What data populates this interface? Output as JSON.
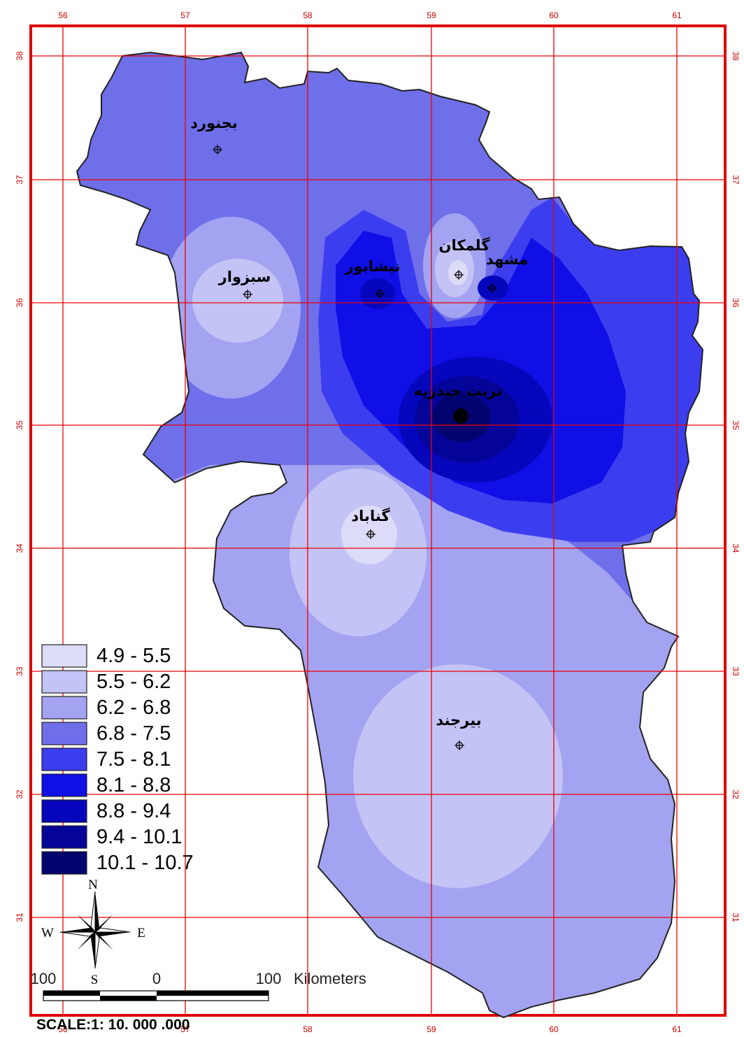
{
  "map": {
    "longitude_ticks": [
      "56",
      "57",
      "58",
      "59",
      "60",
      "61"
    ],
    "latitude_ticks": [
      "38",
      "37",
      "36",
      "35",
      "34",
      "33",
      "32",
      "31"
    ],
    "cities": [
      {
        "id": "bojnurd",
        "name": "بجنورد"
      },
      {
        "id": "sabzevar",
        "name": "سبزوار"
      },
      {
        "id": "neyshabur",
        "name": "نیشابور"
      },
      {
        "id": "golmakan",
        "name": "گلمکان"
      },
      {
        "id": "mashhad",
        "name": "مشهد"
      },
      {
        "id": "torbat",
        "name": "تربت حیدریه"
      },
      {
        "id": "gonabad",
        "name": "گناباد"
      },
      {
        "id": "birjand",
        "name": "بیرجند"
      }
    ]
  },
  "legend": {
    "classes": [
      {
        "label": "4.9 - 5.5",
        "color": "#dcdcf8"
      },
      {
        "label": "5.5 - 6.2",
        "color": "#c3c3f6"
      },
      {
        "label": "6.2 - 6.8",
        "color": "#a3a3f1"
      },
      {
        "label": "6.8 - 7.5",
        "color": "#6f6fea"
      },
      {
        "label": "7.5 - 8.1",
        "color": "#3d3df0"
      },
      {
        "label": "8.1 - 8.8",
        "color": "#0f0fe6"
      },
      {
        "label": "8.8 - 9.4",
        "color": "#0606bd"
      },
      {
        "label": "9.4 - 10.1",
        "color": "#040498"
      },
      {
        "label": "10.1 - 10.7",
        "color": "#03036f"
      }
    ]
  },
  "compass": {
    "n": "N",
    "s": "S",
    "e": "E",
    "w": "W"
  },
  "scale_bar": {
    "left": "100",
    "zero": "0",
    "right": "100",
    "unit": "Kilometers"
  },
  "scale_text": "SCALE:1: 10. 000 .000",
  "colors": {
    "frame": "#dd0000",
    "grid": "#ee0000",
    "border": "#222222"
  }
}
